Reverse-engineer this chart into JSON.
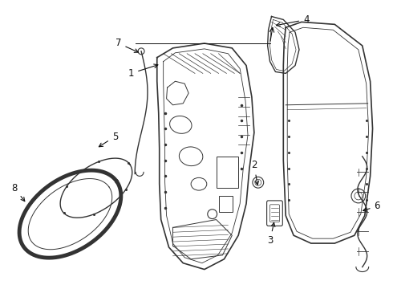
{
  "background_color": "#ffffff",
  "line_color": "#333333",
  "fig_width": 4.9,
  "fig_height": 3.6,
  "dpi": 100,
  "label_fontsize": 8.5
}
